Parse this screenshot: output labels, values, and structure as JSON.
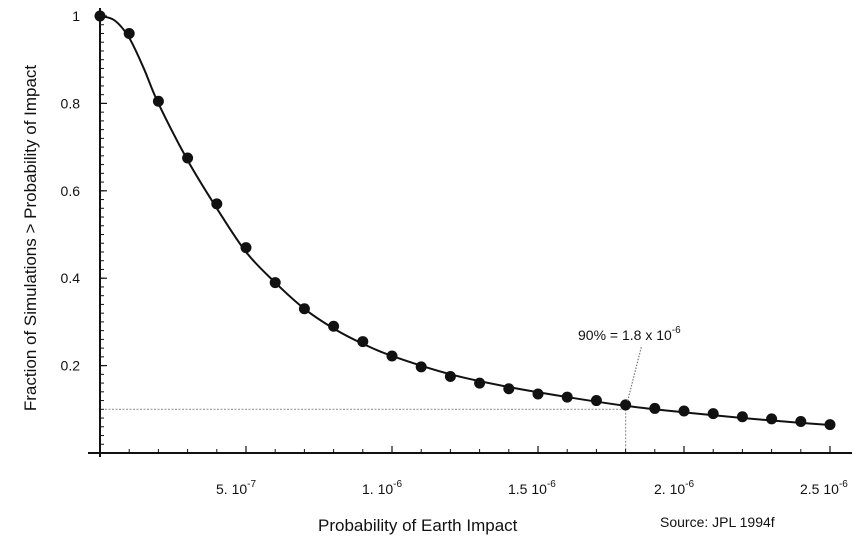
{
  "chart_data": {
    "type": "scatter",
    "title": "",
    "xlabel": "Probability of Earth Impact",
    "ylabel": "Fraction of Simulations > Probability of Impact",
    "xlim": [
      0,
      2.55e-06
    ],
    "ylim": [
      0,
      1.0
    ],
    "grid": false,
    "x_ticks": [
      {
        "value": 5e-07,
        "mantissa": "5.",
        "base": "10",
        "exponent": "-7"
      },
      {
        "value": 1e-06,
        "mantissa": "1.",
        "base": "10",
        "exponent": "-6"
      },
      {
        "value": 1.5e-06,
        "mantissa": "1.5",
        "base": "10",
        "exponent": "-6"
      },
      {
        "value": 2e-06,
        "mantissa": "2.",
        "base": "10",
        "exponent": "-6"
      },
      {
        "value": 2.5e-06,
        "mantissa": "2.5",
        "base": "10",
        "exponent": "-6"
      }
    ],
    "y_ticks": [
      {
        "value": 0.2,
        "label": "0.2"
      },
      {
        "value": 0.4,
        "label": "0.4"
      },
      {
        "value": 0.6,
        "label": "0.6"
      },
      {
        "value": 0.8,
        "label": "0.8"
      },
      {
        "value": 1.0,
        "label": "1"
      }
    ],
    "series": [
      {
        "kind": "points",
        "x": [
          0,
          1e-07,
          2e-07,
          3e-07,
          4e-07,
          5e-07,
          6e-07,
          7e-07,
          8e-07,
          9e-07,
          1e-06,
          1.1e-06,
          1.2e-06,
          1.3e-06,
          1.4e-06,
          1.5e-06,
          1.6e-06,
          1.7e-06,
          1.8e-06,
          1.9e-06,
          2e-06,
          2.1e-06,
          2.2e-06,
          2.3e-06,
          2.4e-06,
          2.5e-06
        ],
        "y": [
          1.0,
          0.96,
          0.805,
          0.675,
          0.57,
          0.47,
          0.39,
          0.33,
          0.29,
          0.255,
          0.222,
          0.197,
          0.175,
          0.16,
          0.147,
          0.135,
          0.128,
          0.12,
          0.11,
          0.102,
          0.096,
          0.09,
          0.083,
          0.078,
          0.072,
          0.065
        ]
      },
      {
        "kind": "curve",
        "x": [
          0,
          5e-08,
          1e-07,
          1.5e-07,
          2e-07,
          3e-07,
          4e-07,
          5e-07,
          6e-07,
          7e-07,
          8e-07,
          9e-07,
          1e-06,
          1.2e-06,
          1.4e-06,
          1.6e-06,
          1.8e-06,
          2e-06,
          2.2e-06,
          2.4e-06,
          2.5e-06
        ],
        "y": [
          1.0,
          0.99,
          0.95,
          0.88,
          0.8,
          0.67,
          0.56,
          0.46,
          0.39,
          0.33,
          0.285,
          0.25,
          0.222,
          0.18,
          0.151,
          0.128,
          0.108,
          0.093,
          0.08,
          0.069,
          0.064
        ]
      }
    ],
    "reference": {
      "x": 1.8e-06,
      "y": 0.1
    },
    "annotations": [
      {
        "text": "90% = 1.8 x 10",
        "exponent": "-6",
        "anchor_x": 1.8e-06,
        "anchor_y": 0.11
      }
    ],
    "source": "Source:  JPL 1994f"
  }
}
